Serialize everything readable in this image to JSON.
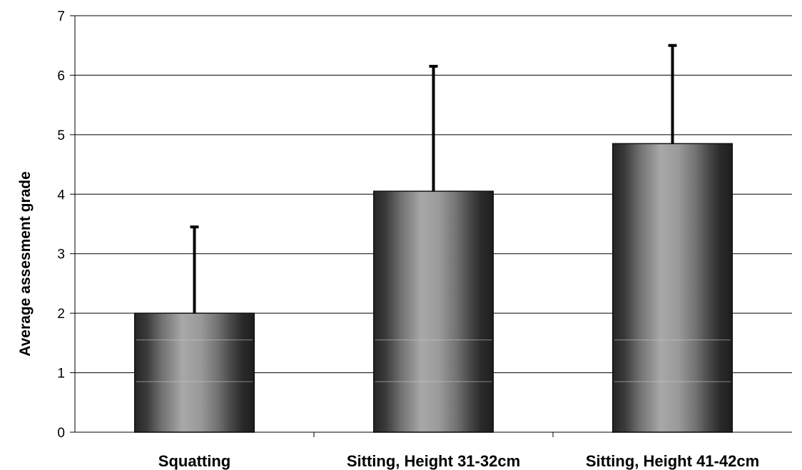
{
  "chart_data": {
    "type": "bar",
    "title": "",
    "xlabel": "",
    "ylabel": "Average assesment grade",
    "ylim": [
      0,
      7
    ],
    "yticks": [
      0,
      1,
      2,
      3,
      4,
      5,
      6,
      7
    ],
    "grid": true,
    "legend": "none",
    "categories": [
      "Squatting",
      "Sitting, Height 31-32cm",
      "Sitting, Height 41-42cm"
    ],
    "values": [
      2.0,
      4.05,
      4.85
    ],
    "error_upper": [
      1.45,
      2.1,
      1.65
    ],
    "colors": {
      "bar_dark": "#262626",
      "bar_light": "#a8a8a8",
      "gridline": "#000000",
      "error_bar": "#000000"
    }
  }
}
